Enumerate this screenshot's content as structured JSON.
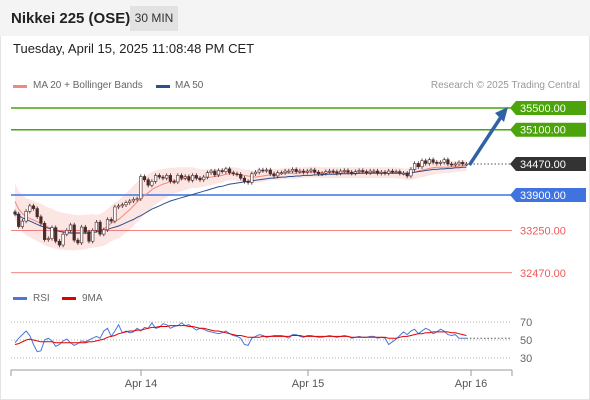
{
  "header": {
    "title": "Nikkei 225 (OSE)",
    "timeframe": "30 MIN"
  },
  "timestamp": "Tuesday, April 15, 2025 11:08:48 PM CET",
  "legend": {
    "ma20_label": "MA 20 + Bollinger Bands",
    "ma50_label": "MA 50",
    "copyright": "Research © 2025 Trading Central"
  },
  "indicator_legend": {
    "rsi_label": "RSI",
    "ma_label": "9MA"
  },
  "colors": {
    "green": "#4aa40a",
    "blue": "#3e73e0",
    "red": "#ef5a5a",
    "dark": "#333333",
    "band_fill": "#fbe0dd",
    "candle": "#4a2a2a",
    "ma50": "#2d4f8e",
    "arrow": "#2e62a4"
  },
  "chart_data": [
    {
      "type": "candlestick",
      "x_ticks": [
        "Apr 14",
        "Apr 15",
        "Apr 16"
      ],
      "levels": [
        {
          "value": "35500.00",
          "color": "green",
          "role": "target"
        },
        {
          "value": "35100.00",
          "color": "green",
          "role": "target"
        },
        {
          "value": "34470.00",
          "color": "dark",
          "role": "last"
        },
        {
          "value": "33900.00",
          "color": "blue",
          "role": "pivot"
        },
        {
          "value": "33250.00",
          "color": "red",
          "role": "support"
        },
        {
          "value": "32470.00",
          "color": "red",
          "role": "support"
        }
      ],
      "close": [
        33550,
        33320,
        33420,
        33600,
        33700,
        33650,
        33500,
        33380,
        33080,
        33100,
        33300,
        33050,
        32980,
        33180,
        33250,
        33350,
        33070,
        33020,
        33310,
        33220,
        33050,
        33250,
        33400,
        33180,
        33260,
        33450,
        33420,
        33680,
        33700,
        33720,
        33760,
        33790,
        33820,
        33830,
        34240,
        34180,
        34080,
        34150,
        34260,
        34230,
        34210,
        34260,
        34150,
        34140,
        34260,
        34210,
        34240,
        34170,
        34260,
        34210,
        34180,
        34230,
        34310,
        34340,
        34270,
        34350,
        34330,
        34380,
        34310,
        34290,
        34280,
        34210,
        34150,
        34130,
        34290,
        34320,
        34360,
        34350,
        34360,
        34290,
        34250,
        34310,
        34310,
        34340,
        34340,
        34370,
        34330,
        34340,
        34320,
        34340,
        34360,
        34320,
        34290,
        34300,
        34330,
        34340,
        34330,
        34300,
        34340,
        34350,
        34320,
        34300,
        34330,
        34350,
        34330,
        34310,
        34340,
        34340,
        34300,
        34320,
        34300,
        34340,
        34330,
        34330,
        34300,
        34300,
        34250,
        34370,
        34480,
        34420,
        34530,
        34480,
        34550,
        34500,
        34480,
        34500,
        34550,
        34470,
        34460,
        34470,
        34500,
        34470,
        34470
      ],
      "ma20": [
        33780,
        33640,
        33560,
        33500,
        33470,
        33440,
        33410,
        33380,
        33340,
        33310,
        33290,
        33260,
        33240,
        33230,
        33220,
        33220,
        33210,
        33210,
        33210,
        33220,
        33230,
        33240,
        33240,
        33250,
        33280,
        33320,
        33380,
        33420,
        33450,
        33510,
        33570,
        33630,
        33700,
        33770,
        33830,
        33890,
        33940,
        34000,
        34040,
        34070,
        34100,
        34120,
        34150,
        34160,
        34180,
        34190,
        34200,
        34210,
        34220,
        34210,
        34210,
        34210,
        34220,
        34230,
        34240,
        34250,
        34260,
        34280,
        34290,
        34290,
        34280,
        34270,
        34260,
        34250,
        34240,
        34230,
        34240,
        34250,
        34260,
        34270,
        34280,
        34280,
        34290,
        34300,
        34300,
        34300,
        34300,
        34310,
        34310,
        34320,
        34320,
        34320,
        34320,
        34310,
        34310,
        34310,
        34310,
        34310,
        34310,
        34310,
        34310,
        34310,
        34310,
        34310,
        34310,
        34310,
        34310,
        34310,
        34310,
        34310,
        34310,
        34310,
        34310,
        34310,
        34300,
        34290,
        34280,
        34300,
        34320,
        34340,
        34360,
        34370,
        34390,
        34400,
        34410,
        34410,
        34410,
        34410,
        34420,
        34420,
        34430,
        34440,
        34440
      ],
      "ma20_band_width": [
        330,
        330,
        340,
        340,
        350,
        350,
        360,
        360,
        360,
        360,
        360,
        350,
        350,
        340,
        340,
        330,
        330,
        320,
        320,
        320,
        310,
        310,
        300,
        300,
        310,
        320,
        330,
        340,
        350,
        360,
        360,
        370,
        370,
        370,
        360,
        350,
        340,
        330,
        310,
        300,
        280,
        270,
        250,
        240,
        230,
        220,
        210,
        200,
        190,
        180,
        170,
        160,
        150,
        140,
        140,
        130,
        130,
        120,
        120,
        120,
        120,
        120,
        110,
        110,
        110,
        110,
        110,
        110,
        100,
        100,
        100,
        100,
        100,
        100,
        100,
        100,
        100,
        100,
        100,
        100,
        100,
        100,
        100,
        100,
        100,
        100,
        100,
        100,
        100,
        100,
        100,
        100,
        100,
        100,
        100,
        100,
        100,
        100,
        100,
        100,
        100,
        100,
        100,
        100,
        100,
        100,
        110,
        120,
        130,
        130,
        130,
        130,
        130,
        130,
        120,
        120,
        110,
        110,
        100,
        100,
        100,
        100,
        100
      ],
      "ma50": [
        33550,
        33520,
        33480,
        33450,
        33420,
        33390,
        33360,
        33330,
        33310,
        33290,
        33270,
        33250,
        33230,
        33220,
        33210,
        33200,
        33200,
        33200,
        33200,
        33200,
        33200,
        33210,
        33220,
        33230,
        33250,
        33270,
        33290,
        33310,
        33330,
        33360,
        33390,
        33420,
        33450,
        33490,
        33520,
        33560,
        33600,
        33640,
        33670,
        33700,
        33730,
        33760,
        33790,
        33810,
        33830,
        33850,
        33870,
        33890,
        33910,
        33930,
        33950,
        33970,
        33990,
        34010,
        34030,
        34050,
        34060,
        34080,
        34100,
        34110,
        34120,
        34130,
        34140,
        34150,
        34160,
        34170,
        34180,
        34190,
        34200,
        34210,
        34210,
        34220,
        34230,
        34230,
        34240,
        34240,
        34250,
        34250,
        34260,
        34260,
        34260,
        34270,
        34270,
        34270,
        34280,
        34280,
        34280,
        34280,
        34290,
        34290,
        34290,
        34290,
        34290,
        34300,
        34300,
        34300,
        34300,
        34300,
        34300,
        34300,
        34300,
        34300,
        34300,
        34300,
        34300,
        34300,
        34300,
        34310,
        34320,
        34330,
        34340,
        34350,
        34360,
        34370,
        34370,
        34380,
        34380,
        34390,
        34390,
        34400,
        34400,
        34410,
        34410
      ]
    },
    {
      "type": "line",
      "title": "RSI",
      "y_ticks": [
        "70",
        "50",
        "30"
      ],
      "ylim": [
        20,
        80
      ],
      "series": [
        {
          "name": "RSI",
          "color": "#4a76d8",
          "values": [
            47,
            52,
            56,
            60,
            55,
            45,
            37,
            38,
            50,
            52,
            49,
            43,
            45,
            49,
            51,
            47,
            44,
            46,
            49,
            48,
            50,
            52,
            54,
            52,
            60,
            63,
            54,
            60,
            67,
            58,
            60,
            58,
            59,
            63,
            60,
            64,
            63,
            69,
            63,
            64,
            68,
            67,
            63,
            65,
            66,
            69,
            66,
            67,
            64,
            61,
            63,
            62,
            60,
            59,
            58,
            57,
            58,
            60,
            57,
            55,
            54,
            52,
            45,
            44,
            52,
            54,
            56,
            55,
            53,
            54,
            55,
            55,
            55,
            54,
            52,
            56,
            56,
            54,
            53,
            55,
            55,
            54,
            53,
            53,
            54,
            55,
            54,
            53,
            54,
            55,
            54,
            52,
            53,
            54,
            53,
            53,
            54,
            54,
            52,
            53,
            52,
            45,
            48,
            51,
            55,
            59,
            56,
            60,
            62,
            57,
            60,
            63,
            61,
            57,
            59,
            62,
            60,
            56,
            55,
            56,
            52,
            52,
            52
          ]
        },
        {
          "name": "9MA",
          "color": "#e00000",
          "values": [
            45,
            46,
            48,
            50,
            51,
            50,
            49,
            48,
            48,
            48,
            48,
            47,
            47,
            47,
            47,
            47,
            47,
            47,
            47,
            47,
            48,
            48,
            49,
            50,
            51,
            53,
            54,
            55,
            57,
            58,
            59,
            60,
            60,
            61,
            61,
            62,
            63,
            64,
            64,
            65,
            65,
            65,
            66,
            66,
            66,
            66,
            66,
            65,
            65,
            64,
            63,
            63,
            62,
            61,
            60,
            60,
            59,
            58,
            57,
            56,
            55,
            55,
            54,
            53,
            53,
            53,
            53,
            54,
            54,
            54,
            54,
            54,
            54,
            54,
            54,
            55,
            55,
            55,
            54,
            54,
            54,
            54,
            54,
            54,
            54,
            54,
            54,
            54,
            54,
            54,
            54,
            53,
            53,
            53,
            53,
            53,
            53,
            53,
            53,
            53,
            53,
            52,
            52,
            52,
            53,
            54,
            54,
            55,
            56,
            57,
            57,
            58,
            58,
            59,
            59,
            59,
            59,
            59,
            58,
            58,
            57,
            56,
            55
          ]
        }
      ]
    }
  ]
}
